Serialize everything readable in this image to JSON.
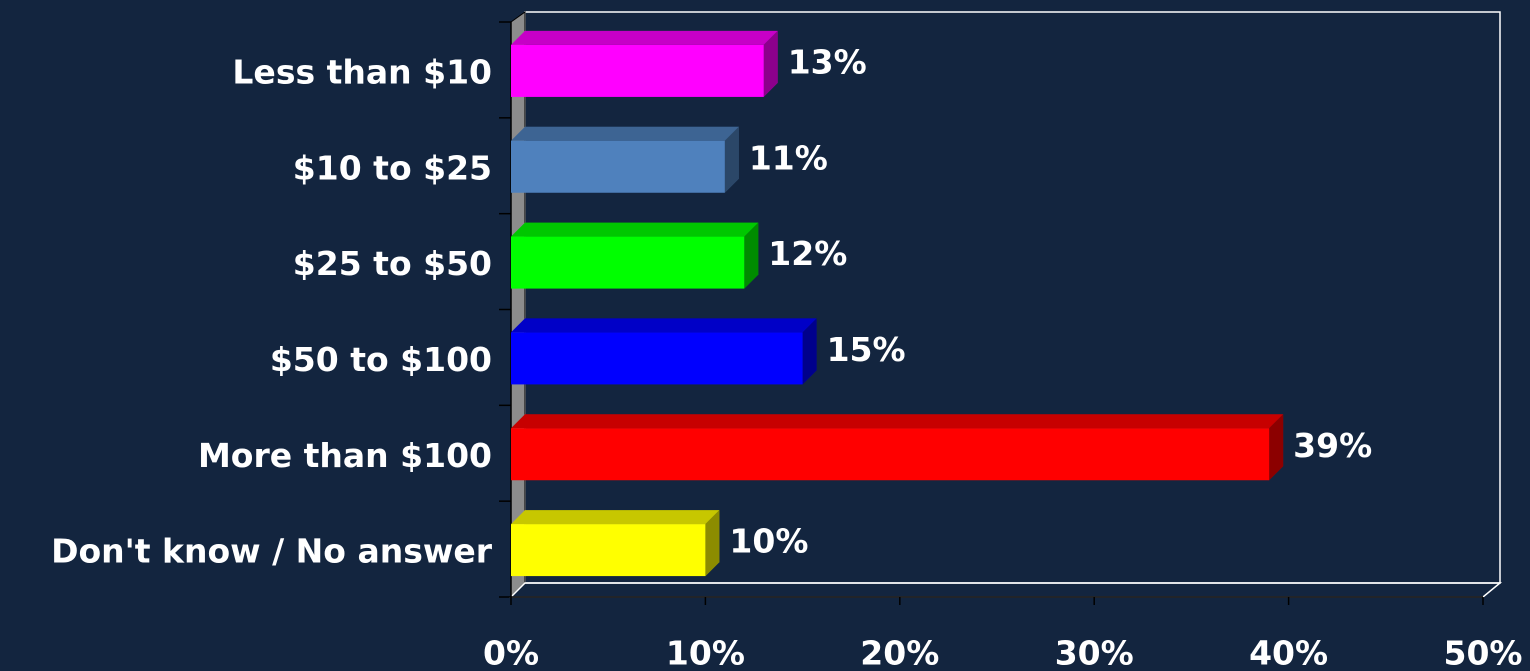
{
  "chart_data": {
    "type": "bar3d_horizontal",
    "categories": [
      "Less than $10",
      "$10 to $25",
      "$25 to $50",
      "$50 to $100",
      "More than $100",
      "Don't know / No answer"
    ],
    "values": [
      13,
      11,
      12,
      15,
      39,
      10
    ],
    "value_labels": [
      "13%",
      "11%",
      "12%",
      "15%",
      "39%",
      "10%"
    ],
    "colors": [
      "#ff00ff",
      "#4f81bd",
      "#00ff00",
      "#0000ff",
      "#ff0000",
      "#ffff00"
    ],
    "xlim": [
      0,
      50
    ],
    "xticks": [
      {
        "value": 0,
        "label": "0%"
      },
      {
        "value": 10,
        "label": "10%"
      },
      {
        "value": 20,
        "label": "20%"
      },
      {
        "value": 30,
        "label": "30%"
      },
      {
        "value": 40,
        "label": "40%"
      },
      {
        "value": 50,
        "label": "50%"
      }
    ]
  }
}
